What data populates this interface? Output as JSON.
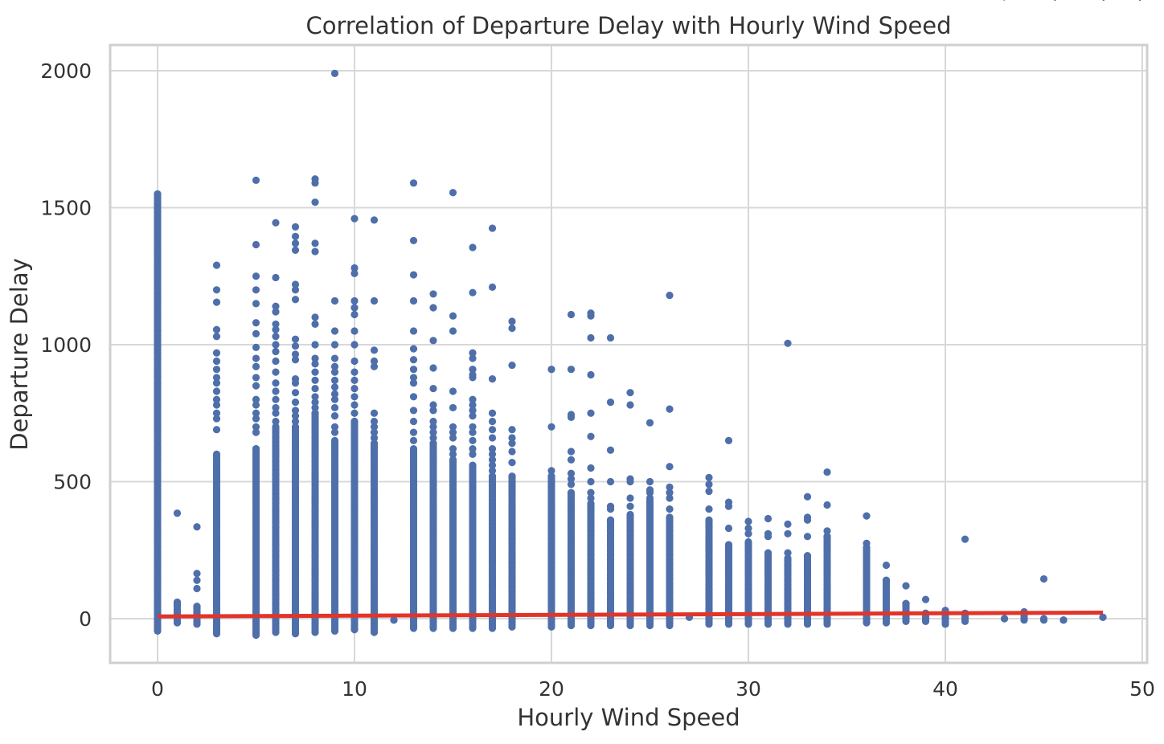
{
  "chart_data": {
    "type": "scatter",
    "title": "Correlation of Departure Delay with Hourly Wind Speed",
    "xlabel": "Hourly Wind Speed",
    "ylabel": "Departure Delay",
    "xlim": [
      -2.5,
      50
    ],
    "ylim": [
      -165,
      2090
    ],
    "xticks": [
      0,
      10,
      20,
      30,
      40,
      50
    ],
    "yticks": [
      0,
      500,
      1000,
      1500,
      2000
    ],
    "grid": true,
    "colors": {
      "points": "#4e6faa",
      "trend": "#e0352b"
    },
    "columns": [
      {
        "x": 0,
        "min": -45,
        "max": 1550,
        "outliers": [
          1550,
          1455,
          1265,
          1190,
          1155,
          1100,
          1050,
          1020,
          995,
          970,
          885,
          860,
          830,
          775,
          755,
          720,
          690,
          650,
          620,
          580
        ]
      },
      {
        "x": 1,
        "min": -15,
        "max": 60,
        "outliers": [
          385,
          60,
          50
        ]
      },
      {
        "x": 2,
        "min": -20,
        "max": 45,
        "outliers": [
          335,
          165,
          140,
          110
        ]
      },
      {
        "x": 3,
        "min": -55,
        "max": 600,
        "outliers": [
          1290,
          1200,
          1155,
          1055,
          1030,
          970,
          940,
          910,
          880,
          860,
          830,
          800,
          780,
          750,
          730,
          690
        ]
      },
      {
        "x": 5,
        "min": -60,
        "max": 620,
        "outliers": [
          1600,
          1365,
          1250,
          1200,
          1150,
          1080,
          1040,
          990,
          950,
          920,
          880,
          850,
          800,
          780,
          750,
          730,
          700,
          680
        ]
      },
      {
        "x": 6,
        "min": -50,
        "max": 700,
        "outliers": [
          1445,
          1245,
          1140,
          1120,
          1075,
          1055,
          1030,
          1000,
          975,
          940,
          900,
          860,
          830,
          800,
          770,
          750,
          720
        ]
      },
      {
        "x": 7,
        "min": -55,
        "max": 700,
        "outliers": [
          1430,
          1395,
          1370,
          1345,
          1220,
          1200,
          1165,
          1020,
          995,
          965,
          945,
          875,
          860,
          825,
          790,
          760,
          740,
          720
        ]
      },
      {
        "x": 8,
        "min": -50,
        "max": 750,
        "outliers": [
          1605,
          1590,
          1520,
          1370,
          1340,
          1100,
          1075,
          1000,
          950,
          930,
          900,
          870,
          840,
          810,
          790,
          770
        ]
      },
      {
        "x": 9,
        "min": -45,
        "max": 650,
        "outliers": [
          1990,
          1160,
          1050,
          1000,
          950,
          920,
          900,
          870,
          845,
          820,
          800,
          770,
          740,
          700,
          680
        ]
      },
      {
        "x": 10,
        "min": -40,
        "max": 720,
        "outliers": [
          1460,
          1280,
          1260,
          1160,
          1135,
          1110,
          1050,
          1000,
          940,
          900,
          870,
          840,
          810,
          780,
          750
        ]
      },
      {
        "x": 11,
        "min": -50,
        "max": 640,
        "outliers": [
          1455,
          1160,
          980,
          940,
          920,
          750,
          720,
          700,
          680,
          660
        ]
      },
      {
        "x": 12,
        "min": -5,
        "max": -5,
        "outliers": []
      },
      {
        "x": 13,
        "min": -35,
        "max": 620,
        "outliers": [
          1590,
          1380,
          1255,
          1160,
          1050,
          985,
          945,
          910,
          880,
          860,
          810,
          760,
          720,
          680,
          650
        ]
      },
      {
        "x": 14,
        "min": -35,
        "max": 640,
        "outliers": [
          1185,
          1135,
          1015,
          915,
          840,
          780,
          760,
          720,
          700,
          680,
          660
        ]
      },
      {
        "x": 15,
        "min": -35,
        "max": 580,
        "outliers": [
          1555,
          1105,
          1050,
          830,
          770,
          700,
          680,
          660,
          620,
          600
        ]
      },
      {
        "x": 16,
        "min": -35,
        "max": 560,
        "outliers": [
          1355,
          1190,
          970,
          950,
          910,
          890,
          880,
          800,
          780,
          760,
          740,
          700,
          680,
          650,
          620,
          600
        ]
      },
      {
        "x": 17,
        "min": -35,
        "max": 520,
        "outliers": [
          1425,
          1210,
          875,
          750,
          720,
          690,
          660,
          620,
          600,
          580,
          560,
          540
        ]
      },
      {
        "x": 18,
        "min": -30,
        "max": 520,
        "outliers": [
          1085,
          1060,
          925,
          690,
          660,
          640,
          610,
          570
        ]
      },
      {
        "x": 20,
        "min": -30,
        "max": 520,
        "outliers": [
          910,
          700,
          540
        ]
      },
      {
        "x": 21,
        "min": -25,
        "max": 460,
        "outliers": [
          1110,
          910,
          745,
          735,
          610,
          580,
          530,
          510,
          490
        ]
      },
      {
        "x": 22,
        "min": -25,
        "max": 420,
        "outliers": [
          1115,
          1105,
          1025,
          890,
          750,
          665,
          550,
          500,
          460,
          440
        ]
      },
      {
        "x": 23,
        "min": -25,
        "max": 360,
        "outliers": [
          1025,
          790,
          615,
          500,
          410,
          400
        ]
      },
      {
        "x": 24,
        "min": -25,
        "max": 380,
        "outliers": [
          825,
          780,
          510,
          500,
          440,
          410
        ]
      },
      {
        "x": 25,
        "min": -25,
        "max": 430,
        "outliers": [
          715,
          500,
          470,
          460,
          440
        ]
      },
      {
        "x": 26,
        "min": -25,
        "max": 370,
        "outliers": [
          1180,
          765,
          555,
          480,
          460,
          440,
          400
        ]
      },
      {
        "x": 27,
        "min": 5,
        "max": 5,
        "outliers": []
      },
      {
        "x": 28,
        "min": -20,
        "max": 360,
        "outliers": [
          515,
          490,
          465,
          400
        ]
      },
      {
        "x": 29,
        "min": -20,
        "max": 270,
        "outliers": [
          650,
          425,
          410,
          330
        ]
      },
      {
        "x": 30,
        "min": -20,
        "max": 280,
        "outliers": [
          355,
          330,
          310
        ]
      },
      {
        "x": 31,
        "min": -20,
        "max": 240,
        "outliers": [
          365,
          310,
          300
        ]
      },
      {
        "x": 32,
        "min": -20,
        "max": 220,
        "outliers": [
          1005,
          345,
          310,
          240
        ]
      },
      {
        "x": 33,
        "min": -20,
        "max": 230,
        "outliers": [
          445,
          370,
          360,
          300
        ]
      },
      {
        "x": 34,
        "min": -20,
        "max": 300,
        "outliers": [
          535,
          415,
          320,
          300
        ]
      },
      {
        "x": 36,
        "min": -15,
        "max": 260,
        "outliers": [
          375,
          275
        ]
      },
      {
        "x": 37,
        "min": -15,
        "max": 140,
        "outliers": [
          195,
          140
        ]
      },
      {
        "x": 38,
        "min": -10,
        "max": 55,
        "outliers": [
          120,
          55
        ]
      },
      {
        "x": 39,
        "min": -10,
        "max": 20,
        "outliers": [
          70
        ]
      },
      {
        "x": 40,
        "min": -20,
        "max": 30,
        "outliers": []
      },
      {
        "x": 41,
        "min": -10,
        "max": 20,
        "outliers": [
          290
        ]
      },
      {
        "x": 43,
        "min": 0,
        "max": 0,
        "outliers": []
      },
      {
        "x": 44,
        "min": -5,
        "max": 25,
        "outliers": []
      },
      {
        "x": 45,
        "min": -5,
        "max": 0,
        "outliers": [
          145
        ]
      },
      {
        "x": 46,
        "min": -5,
        "max": -5,
        "outliers": []
      },
      {
        "x": 48,
        "min": 5,
        "max": 5,
        "outliers": []
      }
    ],
    "trend_line": {
      "x": [
        0,
        48
      ],
      "y": [
        8,
        22
      ]
    }
  }
}
